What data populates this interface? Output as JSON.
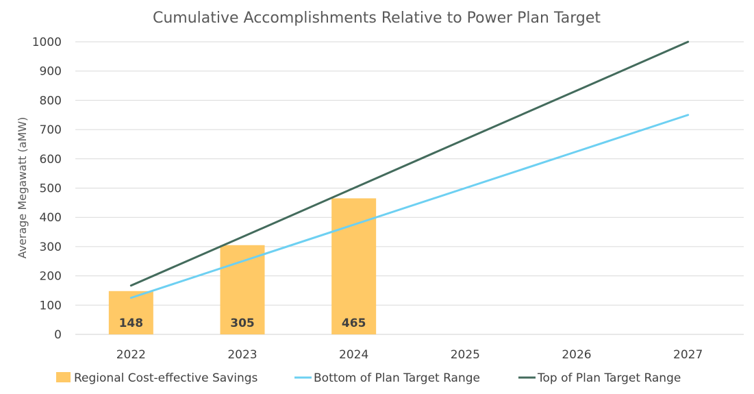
{
  "chart_data": {
    "type": "bar+line",
    "title": "Cumulative Accomplishments Relative to Power Plan Target",
    "ylabel": "Average Megawatt (aMW)",
    "xlabel": "",
    "categories": [
      "2022",
      "2023",
      "2024",
      "2025",
      "2026",
      "2027"
    ],
    "ylim": [
      0,
      1000
    ],
    "yticks": [
      0,
      100,
      200,
      300,
      400,
      500,
      600,
      700,
      800,
      900,
      1000
    ],
    "grid": true,
    "legend_position": "bottom",
    "series": [
      {
        "name": "Regional Cost-effective Savings",
        "kind": "bar",
        "color": "#FFC966",
        "values": [
          148,
          305,
          465,
          null,
          null,
          null
        ],
        "data_labels": [
          "148",
          "305",
          "465"
        ]
      },
      {
        "name": "Bottom of Plan Target Range",
        "kind": "line",
        "color": "#6DD0F2",
        "values": [
          125,
          250,
          375,
          500,
          625,
          750
        ]
      },
      {
        "name": "Top of Plan Target Range",
        "kind": "line",
        "color": "#436B5C",
        "values": [
          167,
          333,
          500,
          667,
          833,
          1000
        ]
      }
    ]
  }
}
